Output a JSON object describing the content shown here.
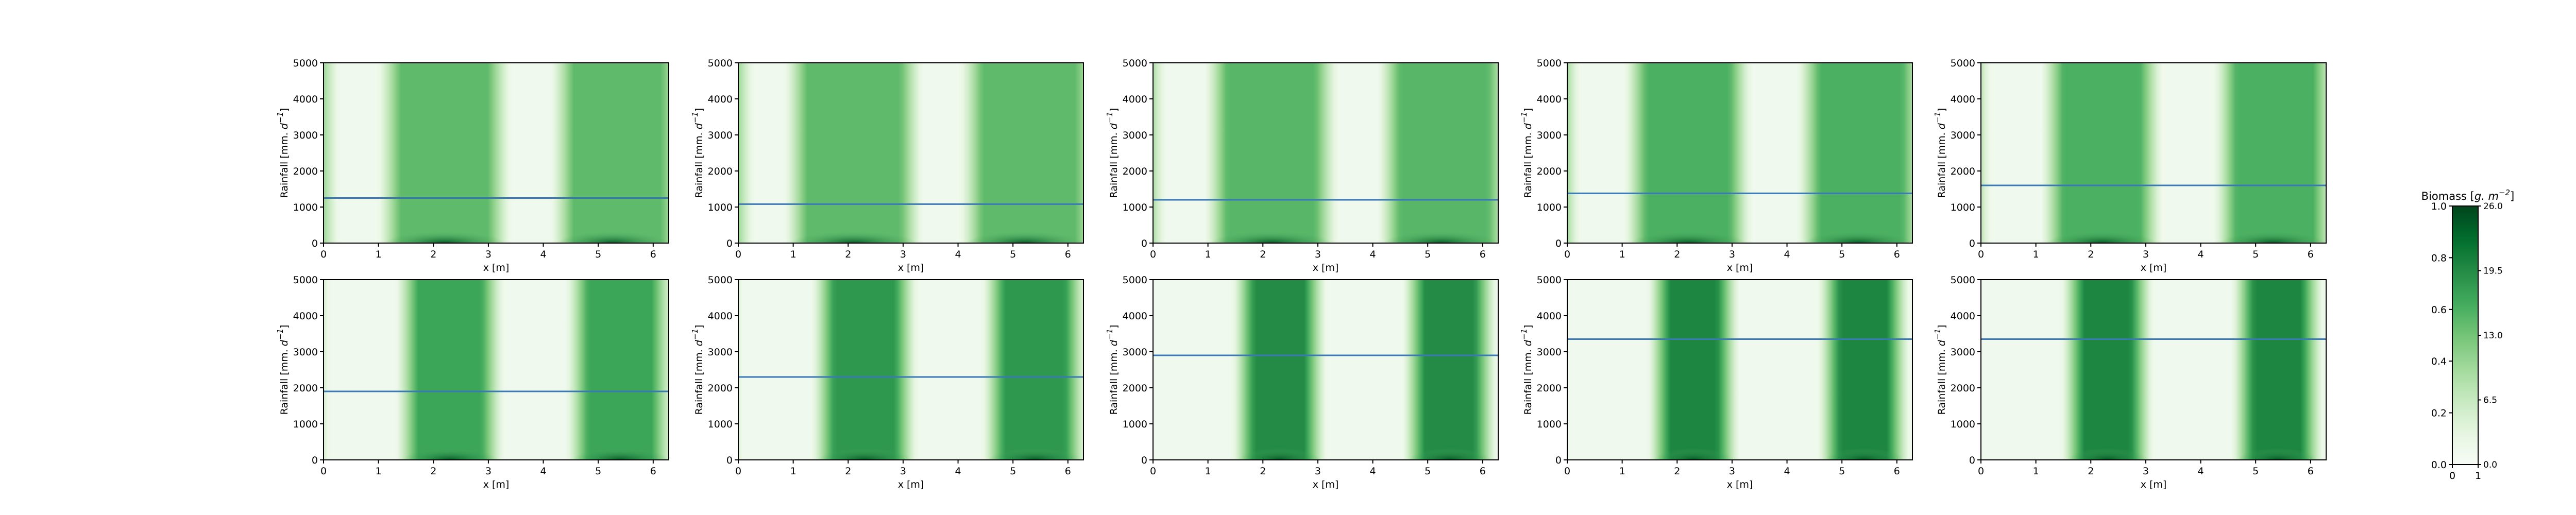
{
  "chart_data": {
    "type": "heatmap",
    "panel_count": 10,
    "panel_grid": {
      "rows": 2,
      "cols": 5
    },
    "xlabel": "x [m]",
    "ylabel": "Rainfall [mm. d$^{-1}$]",
    "ylabel_main": "Rainfall [mm. ",
    "ylabel_base": "d",
    "ylabel_sup": "−1",
    "ylabel_tail": "]",
    "xlim": [
      0,
      6.283
    ],
    "ylim": [
      0,
      5000
    ],
    "xticks": [
      0,
      1,
      2,
      3,
      4,
      5,
      6
    ],
    "xtick_labels": [
      "0",
      "1",
      "2",
      "3",
      "4",
      "5",
      "6"
    ],
    "yticks": [
      0,
      1000,
      2000,
      3000,
      4000,
      5000
    ],
    "ytick_labels": [
      "0",
      "1000",
      "2000",
      "3000",
      "4000",
      "5000"
    ],
    "colormap": "Greens",
    "line_color": "#3b78b8",
    "grid": false,
    "panels": [
      {
        "row": 0,
        "col": 0,
        "rainfall_line": 1250,
        "bands": [
          {
            "center": 2.2,
            "width": 2.0
          },
          {
            "center": 5.35,
            "width": 2.0
          }
        ],
        "shade": 0.5
      },
      {
        "row": 0,
        "col": 1,
        "rainfall_line": 1080,
        "bands": [
          {
            "center": 2.1,
            "width": 2.1
          },
          {
            "center": 5.3,
            "width": 2.1
          }
        ],
        "shade": 0.5
      },
      {
        "row": 0,
        "col": 2,
        "rainfall_line": 1200,
        "bands": [
          {
            "center": 2.15,
            "width": 2.0
          },
          {
            "center": 5.3,
            "width": 2.0
          }
        ],
        "shade": 0.52
      },
      {
        "row": 0,
        "col": 3,
        "rainfall_line": 1380,
        "bands": [
          {
            "center": 2.2,
            "width": 1.9
          },
          {
            "center": 5.35,
            "width": 1.9
          }
        ],
        "shade": 0.55
      },
      {
        "row": 0,
        "col": 4,
        "rainfall_line": 1600,
        "bands": [
          {
            "center": 2.2,
            "width": 1.8
          },
          {
            "center": 5.35,
            "width": 1.8
          }
        ],
        "shade": 0.55
      },
      {
        "row": 1,
        "col": 0,
        "rainfall_line": 1900,
        "bands": [
          {
            "center": 2.3,
            "width": 1.55
          },
          {
            "center": 5.4,
            "width": 1.55
          }
        ],
        "shade": 0.6
      },
      {
        "row": 1,
        "col": 1,
        "rainfall_line": 2300,
        "bands": [
          {
            "center": 2.3,
            "width": 1.5
          },
          {
            "center": 5.4,
            "width": 1.5
          }
        ],
        "shade": 0.65
      },
      {
        "row": 1,
        "col": 2,
        "rainfall_line": 2900,
        "bands": [
          {
            "center": 2.3,
            "width": 1.3
          },
          {
            "center": 5.4,
            "width": 1.3
          }
        ],
        "shade": 0.7
      },
      {
        "row": 1,
        "col": 3,
        "rainfall_line": 3350,
        "bands": [
          {
            "center": 2.3,
            "width": 1.25
          },
          {
            "center": 5.4,
            "width": 1.25
          }
        ],
        "shade": 0.72
      },
      {
        "row": 1,
        "col": 4,
        "rainfall_line": 3350,
        "bands": [
          {
            "center": 2.3,
            "width": 1.25
          },
          {
            "center": 5.4,
            "width": 1.25
          }
        ],
        "shade": 0.72
      }
    ],
    "colorbar": {
      "title_main": "Biomass [",
      "title_base": "g. m",
      "title_sup": "−2",
      "title_tail": "]",
      "left_ticks": [
        0.0,
        0.2,
        0.4,
        0.6,
        0.8,
        1.0
      ],
      "left_tick_labels": [
        "0.0",
        "0.2",
        "0.4",
        "0.6",
        "0.8",
        "1.0"
      ],
      "right_ticks": [
        0.0,
        6.5,
        13.0,
        19.5,
        26.0
      ],
      "right_tick_labels": [
        "0.0",
        "6.5",
        "13.0",
        "19.5",
        "26.0"
      ],
      "range": [
        0,
        26
      ],
      "bottom_ticks": [
        0,
        1
      ],
      "bottom_tick_labels": [
        "0",
        "1"
      ]
    }
  }
}
